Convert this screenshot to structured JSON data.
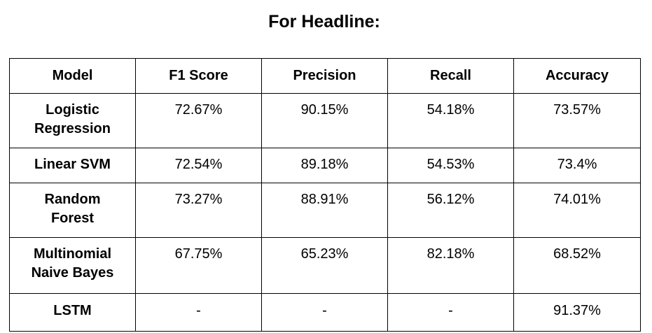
{
  "title": "For Headline:",
  "table": {
    "headers": [
      "Model",
      "F1 Score",
      "Precision",
      "Recall",
      "Accuracy"
    ],
    "rows": [
      {
        "model_line1": "Logistic",
        "model_line2": "Regression",
        "f1": "72.67%",
        "precision": "90.15%",
        "recall": "54.18%",
        "accuracy": "73.57%"
      },
      {
        "model_line1": "Linear SVM",
        "model_line2": "",
        "f1": "72.54%",
        "precision": "89.18%",
        "recall": "54.53%",
        "accuracy": "73.4%"
      },
      {
        "model_line1": "Random",
        "model_line2": "Forest",
        "f1": "73.27%",
        "precision": "88.91%",
        "recall": "56.12%",
        "accuracy": "74.01%"
      },
      {
        "model_line1": "Multinomial",
        "model_line2": "Naive Bayes",
        "f1": "67.75%",
        "precision": "65.23%",
        "recall": "82.18%",
        "accuracy": "68.52%"
      },
      {
        "model_line1": "LSTM",
        "model_line2": "",
        "f1": "-",
        "precision": "-",
        "recall": "-",
        "accuracy": "91.37%"
      }
    ]
  }
}
